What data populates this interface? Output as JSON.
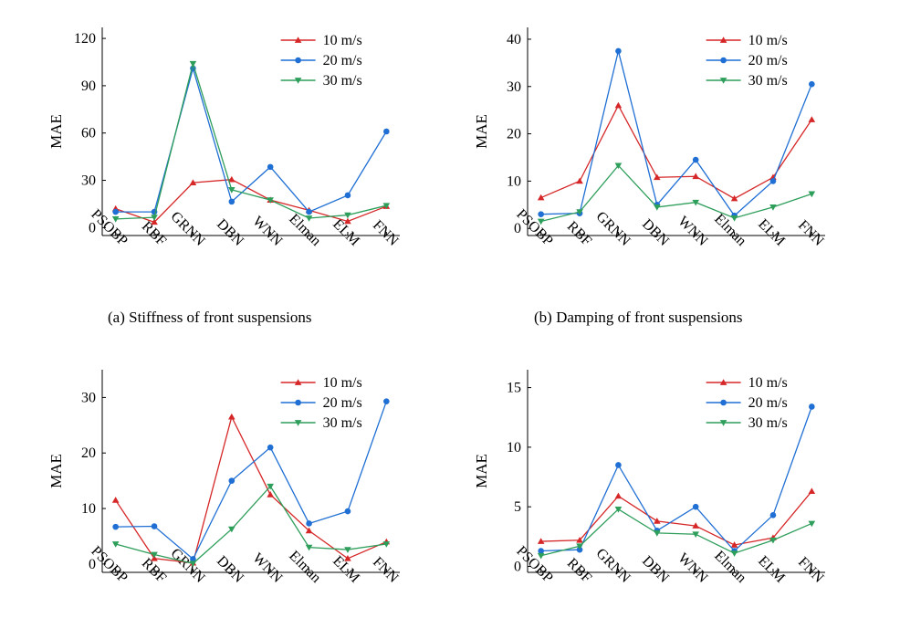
{
  "colors": {
    "10 m/s": "#d62728",
    "20 m/s": "#1f6fd4",
    "30 m/s": "#2e9e5b",
    "axis": "#000000"
  },
  "markers": {
    "10 m/s": "triangle-up",
    "20 m/s": "circle",
    "30 m/s": "triangle-down"
  },
  "captions": {
    "a": "(a)  Stiffness of front suspensions",
    "b": "(b)  Damping of front suspensions"
  },
  "chart_data": [
    {
      "id": "a",
      "type": "line",
      "ylabel": "MAE",
      "categories": [
        "PSOBP",
        "RBF",
        "GRNN",
        "DBN",
        "WNN",
        "Elman",
        "ELM",
        "FNN"
      ],
      "yticks": [
        0,
        30,
        60,
        90,
        120
      ],
      "ylim": [
        -5,
        127
      ],
      "legend": "top-right",
      "series": [
        {
          "name": "10 m/s",
          "values": [
            12,
            3.5,
            28.5,
            30.5,
            17.5,
            11,
            4,
            13.5
          ]
        },
        {
          "name": "20 m/s",
          "values": [
            10,
            10,
            101,
            16.5,
            38.5,
            10,
            20.5,
            61
          ]
        },
        {
          "name": "30 m/s",
          "values": [
            5.5,
            6.5,
            104,
            24,
            17.5,
            6,
            8,
            14
          ]
        }
      ]
    },
    {
      "id": "b",
      "type": "line",
      "ylabel": "MAE",
      "categories": [
        "PSOBP",
        "RBF",
        "GRNN",
        "DBN",
        "WNN",
        "Elman",
        "ELM",
        "FNN"
      ],
      "yticks": [
        0,
        10,
        20,
        30,
        40
      ],
      "ylim": [
        -1.5,
        42.5
      ],
      "legend": "top-right",
      "series": [
        {
          "name": "10 m/s",
          "values": [
            6.5,
            10,
            26,
            10.8,
            11,
            6.3,
            10.8,
            23
          ]
        },
        {
          "name": "20 m/s",
          "values": [
            3,
            3.2,
            37.5,
            5,
            14.5,
            2.7,
            10,
            30.5
          ]
        },
        {
          "name": "30 m/s",
          "values": [
            1.5,
            3.5,
            13.3,
            4.5,
            5.5,
            2.2,
            4.5,
            7.3
          ]
        }
      ]
    },
    {
      "id": "c",
      "type": "line",
      "ylabel": "MAE",
      "categories": [
        "PSOBP",
        "RBF",
        "GRNN",
        "DBN",
        "WNN",
        "Elman",
        "ELM",
        "FNN"
      ],
      "yticks": [
        0,
        10,
        20,
        30
      ],
      "ylim": [
        -1.5,
        35
      ],
      "legend": "top-right",
      "series": [
        {
          "name": "10 m/s",
          "values": [
            11.5,
            1,
            0.2,
            26.5,
            12.5,
            6,
            1,
            4
          ]
        },
        {
          "name": "20 m/s",
          "values": [
            6.7,
            6.8,
            0.9,
            15,
            21,
            7.3,
            9.5,
            29.3
          ]
        },
        {
          "name": "30 m/s",
          "values": [
            3.6,
            1.7,
            0.1,
            6.3,
            14,
            3,
            2.6,
            3.6
          ]
        }
      ]
    },
    {
      "id": "d",
      "type": "line",
      "ylabel": "MAE",
      "categories": [
        "PSOBP",
        "RBF",
        "GRNN",
        "DBN",
        "WNN",
        "Elman",
        "ELM",
        "FNN"
      ],
      "yticks": [
        0,
        5,
        10,
        15
      ],
      "ylim": [
        -0.5,
        16.5
      ],
      "legend": "top-right",
      "series": [
        {
          "name": "10 m/s",
          "values": [
            2.1,
            2.2,
            5.9,
            3.8,
            3.4,
            1.8,
            2.4,
            6.3
          ]
        },
        {
          "name": "20 m/s",
          "values": [
            1.3,
            1.4,
            8.5,
            3,
            5,
            1.3,
            4.3,
            13.4
          ]
        },
        {
          "name": "30 m/s",
          "values": [
            0.9,
            1.7,
            4.8,
            2.8,
            2.7,
            1.1,
            2.2,
            3.6
          ]
        }
      ]
    }
  ]
}
